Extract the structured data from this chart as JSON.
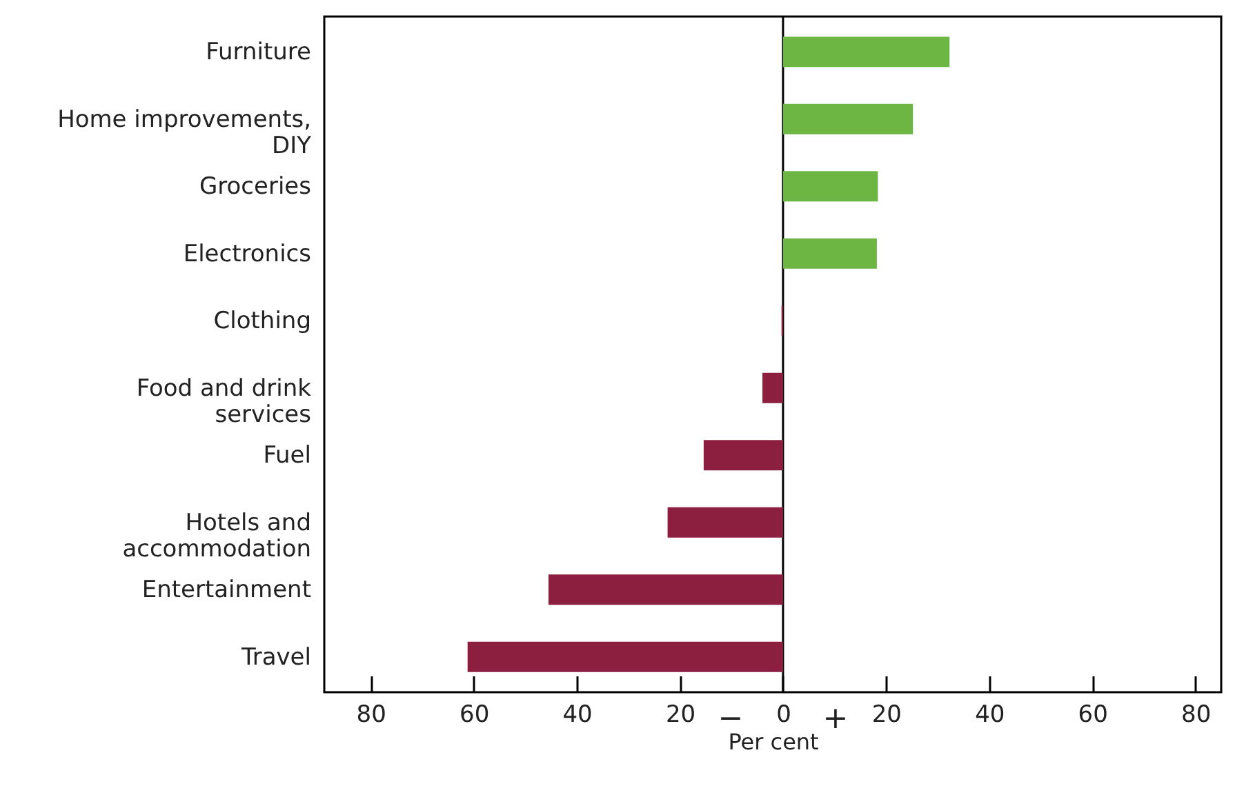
{
  "chart_data": {
    "type": "bar",
    "orientation": "horizontal",
    "xlabel": "Per cent",
    "categories": [
      "Furniture",
      "Home improvements, DIY",
      "Groceries",
      "Electronics",
      "Clothing",
      "Food and drink services",
      "Fuel",
      "Hotels and accommodation",
      "Entertainment",
      "Travel"
    ],
    "values": [
      32.3,
      25.2,
      18.4,
      18.2,
      -0.3,
      -4.0,
      -15.4,
      -22.4,
      -45.5,
      -61.2
    ],
    "colors": [
      "#6db644",
      "#6db644",
      "#6db644",
      "#6db644",
      "#8c1f3f",
      "#8c1f3f",
      "#8c1f3f",
      "#8c1f3f",
      "#8c1f3f",
      "#8c1f3f"
    ],
    "xlim": [
      -89,
      85
    ],
    "xticks": [
      {
        "value": -80,
        "label": "80"
      },
      {
        "value": -60,
        "label": "60"
      },
      {
        "value": -40,
        "label": "40"
      },
      {
        "value": -20,
        "label": "20"
      },
      0,
      20,
      40,
      60,
      80
    ],
    "ref_lines": [
      {
        "axis": "x",
        "value": 0
      }
    ],
    "annotations": [
      "−",
      "+"
    ],
    "grid": false
  }
}
